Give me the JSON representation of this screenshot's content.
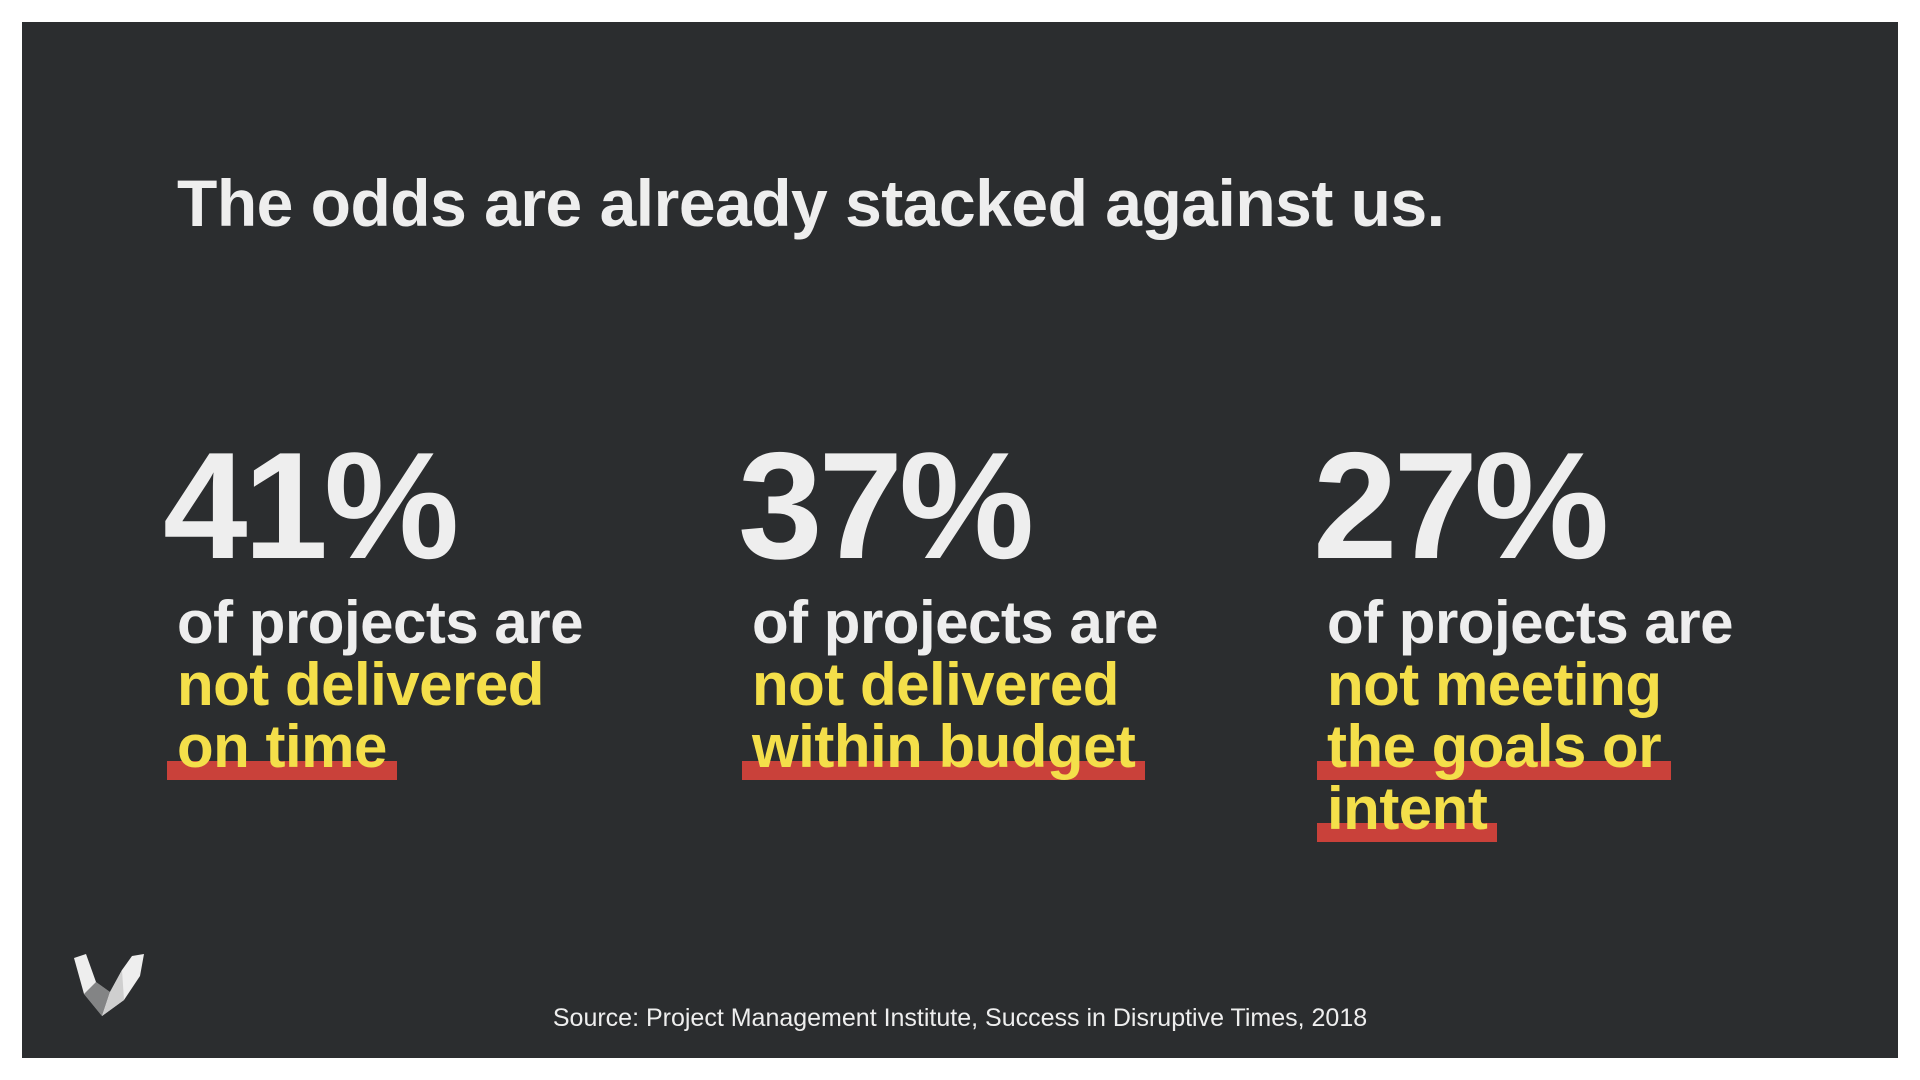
{
  "slide": {
    "title": "The odds are already stacked against us.",
    "stats": [
      {
        "percent": "41%",
        "lead": "of projects are",
        "highlight_lines": [
          "not delivered",
          "on time"
        ],
        "underlined_lines": [
          "on time"
        ]
      },
      {
        "percent": "37%",
        "lead": "of projects are",
        "highlight_lines": [
          "not delivered",
          "within budget"
        ],
        "underlined_lines": [
          "within budget"
        ]
      },
      {
        "percent": "27%",
        "lead": "of projects are",
        "highlight_lines": [
          "not meeting",
          "the goals or",
          "intent"
        ],
        "underlined_lines": [
          "the goals or",
          "intent"
        ]
      }
    ],
    "source": "Source: Project Management Institute, Success in Disruptive Times, 2018",
    "logo_icon": "stylized-w-logo-icon"
  },
  "colors": {
    "background": "#2b2d2f",
    "text": "#eeeeee",
    "highlight_text": "#f4df4a",
    "underline": "#c9413a"
  }
}
